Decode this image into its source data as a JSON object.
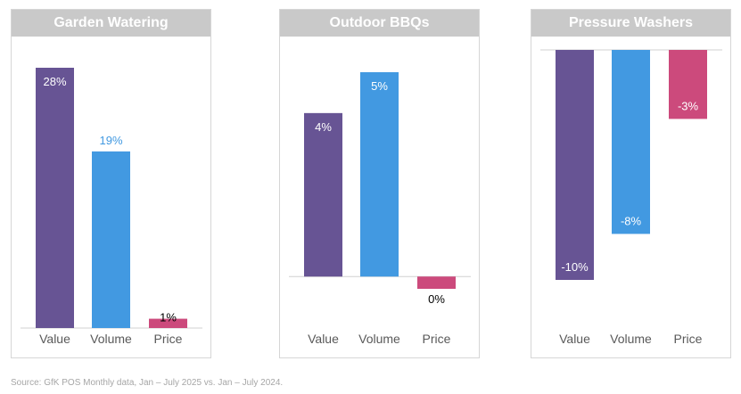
{
  "colors": {
    "value": "#675494",
    "volume": "#4299e1",
    "price": "#cc4a7c",
    "title_bg": "#c9c9c9",
    "axis": "#d0d0d0"
  },
  "chart_data": [
    {
      "type": "bar",
      "title": "Garden Watering",
      "categories": [
        "Value",
        "Volume",
        "Price"
      ],
      "values": [
        28,
        19,
        1
      ],
      "labels": [
        "28%",
        "19%",
        "1%"
      ],
      "ylim": [
        0,
        28
      ]
    },
    {
      "type": "bar",
      "title": "Outdoor BBQs",
      "categories": [
        "Value",
        "Volume",
        "Price"
      ],
      "values": [
        4,
        5,
        -0.3
      ],
      "labels": [
        "4%",
        "5%",
        "0%"
      ],
      "ylim": [
        -0.3,
        5
      ]
    },
    {
      "type": "bar",
      "title": "Pressure Washers",
      "categories": [
        "Value",
        "Volume",
        "Price"
      ],
      "values": [
        -10,
        -8,
        -3
      ],
      "labels": [
        "-10%",
        "-8%",
        "-3%"
      ],
      "ylim": [
        -10,
        0
      ]
    }
  ],
  "source": "Source: GfK POS Monthly data, Jan – July 2025 vs. Jan – July 2024."
}
